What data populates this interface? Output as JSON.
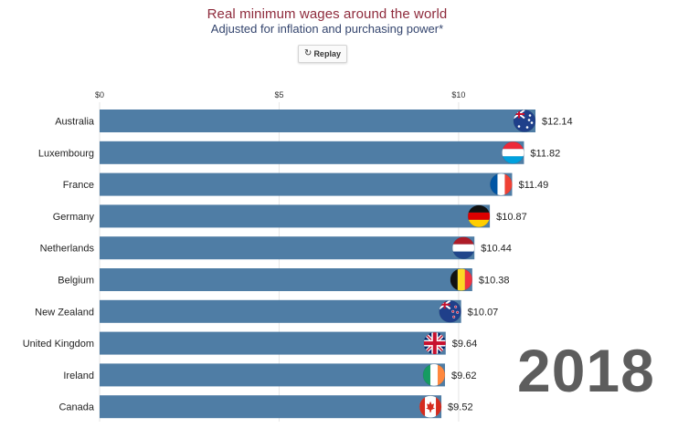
{
  "header": {
    "title": "Real minimum wages around the world",
    "subtitle": "Adjusted for inflation and purchasing power*",
    "replay_label": "Replay"
  },
  "year": "2018",
  "colors": {
    "bar": "#4f7da5",
    "title": "#8e2b3c",
    "subtitle": "#34456e",
    "year": "#5d5d5d"
  },
  "chart_data": {
    "type": "bar",
    "orientation": "horizontal",
    "title": "Real minimum wages around the world",
    "subtitle": "Adjusted for inflation and purchasing power*",
    "xlim": [
      0,
      12.14
    ],
    "ticks": [
      {
        "value": 0,
        "label": "$0"
      },
      {
        "value": 5,
        "label": "$5"
      },
      {
        "value": 10,
        "label": "$10"
      }
    ],
    "categories": [
      "Australia",
      "Luxembourg",
      "France",
      "Germany",
      "Netherlands",
      "Belgium",
      "New Zealand",
      "United Kingdom",
      "Ireland",
      "Canada"
    ],
    "values": [
      12.14,
      11.82,
      11.49,
      10.87,
      10.44,
      10.38,
      10.07,
      9.64,
      9.62,
      9.52
    ],
    "value_labels": [
      "$12.14",
      "$11.82",
      "$11.49",
      "$10.87",
      "$10.44",
      "$10.38",
      "$10.07",
      "$9.64",
      "$9.62",
      "$9.52"
    ],
    "flags": [
      "australia-flag-icon",
      "luxembourg-flag-icon",
      "france-flag-icon",
      "germany-flag-icon",
      "netherlands-flag-icon",
      "belgium-flag-icon",
      "new-zealand-flag-icon",
      "united-kingdom-flag-icon",
      "ireland-flag-icon",
      "canada-flag-icon"
    ]
  }
}
